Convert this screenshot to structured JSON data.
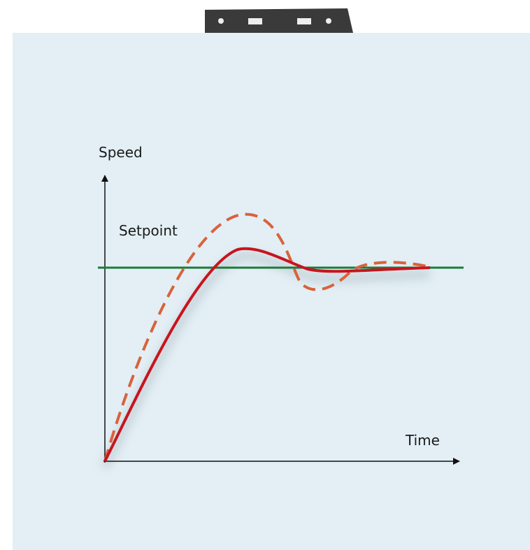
{
  "y_axis_label": "Speed",
  "x_axis_label": "Time",
  "setpoint_label": "Setpoint"
}
